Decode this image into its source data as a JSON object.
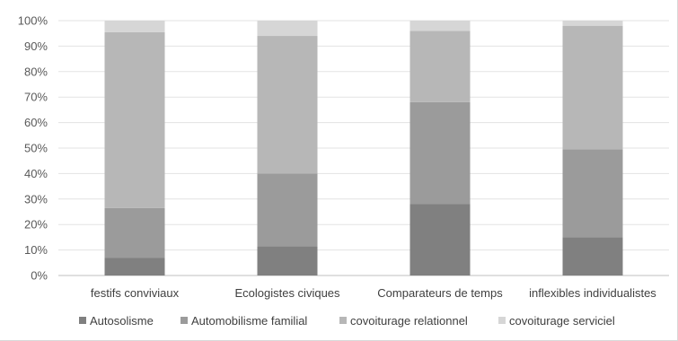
{
  "chart_data": {
    "type": "bar",
    "stacked": true,
    "percent": true,
    "categories": [
      "festifs conviviaux",
      "Ecologistes civiques",
      "Comparateurs de temps",
      "inflexibles individualistes"
    ],
    "series": [
      {
        "name": "Autosolisme",
        "values": [
          7,
          11.5,
          28,
          15
        ],
        "color": "#808080"
      },
      {
        "name": "Automobilisme familial",
        "values": [
          19.5,
          28.5,
          40,
          34.5
        ],
        "color": "#9b9b9b"
      },
      {
        "name": "covoiturage relationnel",
        "values": [
          69,
          54,
          28,
          48.5
        ],
        "color": "#b7b7b7"
      },
      {
        "name": "covoiturage serviciel",
        "values": [
          4.5,
          6,
          4,
          2
        ],
        "color": "#d6d6d6"
      }
    ],
    "ylim": [
      0,
      100
    ],
    "yticks": [
      "0%",
      "10%",
      "20%",
      "30%",
      "40%",
      "50%",
      "60%",
      "70%",
      "80%",
      "90%",
      "100%"
    ],
    "grid": true,
    "legend": "bottom"
  }
}
